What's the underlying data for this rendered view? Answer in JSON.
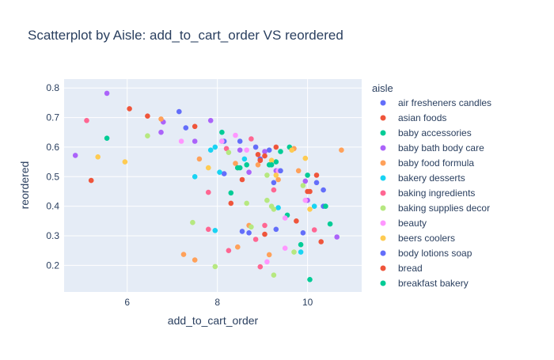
{
  "chart_data": {
    "type": "scatter",
    "title": "Scatterplot by Aisle: add_to_cart_order VS reordered",
    "xlabel": "add_to_cart_order",
    "ylabel": "reordered",
    "xlim": [
      4.6,
      11.2
    ],
    "ylim": [
      0.11,
      0.83
    ],
    "x_ticks": [
      6,
      8,
      10
    ],
    "y_ticks": [
      0.2,
      0.3,
      0.4,
      0.5,
      0.6,
      0.7,
      0.8
    ],
    "grid": true,
    "legend_title": "aisle",
    "legend_position": "right",
    "series": [
      {
        "name": "air fresheners candles",
        "color": "#636efa",
        "points": [
          [
            7.15,
            0.72
          ],
          [
            7.3,
            0.665
          ],
          [
            8.15,
            0.62
          ],
          [
            8.95,
            0.56
          ],
          [
            9.15,
            0.59
          ],
          [
            10.35,
            0.455
          ],
          [
            10.2,
            0.48
          ],
          [
            8.7,
            0.31
          ],
          [
            9.9,
            0.31
          ],
          [
            8.15,
            0.51
          ],
          [
            10.35,
            0.4
          ]
        ]
      },
      {
        "name": "asian foods",
        "color": "#ef553b",
        "points": [
          [
            6.05,
            0.73
          ],
          [
            6.45,
            0.705
          ],
          [
            5.2,
            0.487
          ],
          [
            7.5,
            0.67
          ],
          [
            8.3,
            0.41
          ],
          [
            8.9,
            0.575
          ],
          [
            9.3,
            0.6
          ],
          [
            10.2,
            0.505
          ],
          [
            10.0,
            0.45
          ],
          [
            9.75,
            0.35
          ],
          [
            9.05,
            0.305
          ],
          [
            10.3,
            0.28
          ],
          [
            8.95,
            0.555
          ],
          [
            8.55,
            0.49
          ]
        ]
      },
      {
        "name": "baby accessories",
        "color": "#00cc96",
        "points": [
          [
            5.55,
            0.63
          ],
          [
            8.1,
            0.65
          ],
          [
            8.3,
            0.445
          ],
          [
            8.5,
            0.53
          ],
          [
            9.15,
            0.54
          ],
          [
            9.6,
            0.6
          ],
          [
            9.85,
            0.27
          ],
          [
            10.05,
            0.152
          ],
          [
            10.5,
            0.34
          ],
          [
            9.3,
            0.55
          ],
          [
            9.55,
            0.37
          ],
          [
            9.4,
            0.585
          ]
        ]
      },
      {
        "name": "baby bath body care",
        "color": "#ab63fa",
        "points": [
          [
            4.85,
            0.572
          ],
          [
            5.55,
            0.782
          ],
          [
            7.5,
            0.62
          ],
          [
            6.75,
            0.65
          ],
          [
            6.8,
            0.685
          ],
          [
            7.85,
            0.69
          ],
          [
            8.5,
            0.59
          ],
          [
            8.7,
            0.515
          ],
          [
            9.05,
            0.585
          ],
          [
            9.3,
            0.52
          ],
          [
            10.0,
            0.42
          ],
          [
            10.65,
            0.296
          ],
          [
            9.95,
            0.485
          ]
        ]
      },
      {
        "name": "baby food formula",
        "color": "#ffa15a",
        "points": [
          [
            6.75,
            0.695
          ],
          [
            7.6,
            0.56
          ],
          [
            7.25,
            0.237
          ],
          [
            7.5,
            0.218
          ],
          [
            8.4,
            0.545
          ],
          [
            8.45,
            0.53
          ],
          [
            8.7,
            0.335
          ],
          [
            8.9,
            0.54
          ],
          [
            9.35,
            0.49
          ],
          [
            9.7,
            0.595
          ],
          [
            9.8,
            0.52
          ],
          [
            10.75,
            0.59
          ],
          [
            8.45,
            0.262
          ],
          [
            9.15,
            0.236
          ]
        ]
      },
      {
        "name": "bakery desserts",
        "color": "#19d3f3",
        "points": [
          [
            7.5,
            0.5
          ],
          [
            7.85,
            0.59
          ],
          [
            7.95,
            0.6
          ],
          [
            8.05,
            0.515
          ],
          [
            8.6,
            0.56
          ],
          [
            9.35,
            0.395
          ],
          [
            10.15,
            0.4
          ],
          [
            9.85,
            0.245
          ],
          [
            8.1,
            0.62
          ],
          [
            7.95,
            0.318
          ]
        ]
      },
      {
        "name": "baking ingredients",
        "color": "#ff6692",
        "points": [
          [
            5.1,
            0.69
          ],
          [
            7.8,
            0.447
          ],
          [
            7.8,
            0.322
          ],
          [
            8.2,
            0.595
          ],
          [
            8.75,
            0.628
          ],
          [
            8.85,
            0.6
          ],
          [
            9.05,
            0.335
          ],
          [
            8.95,
            0.195
          ],
          [
            9.25,
            0.455
          ],
          [
            8.85,
            0.288
          ],
          [
            10.15,
            0.32
          ],
          [
            8.25,
            0.25
          ]
        ]
      },
      {
        "name": "baking supplies decor",
        "color": "#b6e880",
        "points": [
          [
            6.45,
            0.638
          ],
          [
            7.45,
            0.345
          ],
          [
            7.95,
            0.196
          ],
          [
            8.25,
            0.582
          ],
          [
            8.65,
            0.41
          ],
          [
            8.75,
            0.33
          ],
          [
            9.1,
            0.42
          ],
          [
            9.25,
            0.39
          ],
          [
            9.25,
            0.167
          ],
          [
            9.7,
            0.245
          ],
          [
            9.9,
            0.47
          ],
          [
            9.2,
            0.4
          ],
          [
            9.1,
            0.505
          ]
        ]
      },
      {
        "name": "beauty",
        "color": "#ff97ff",
        "points": [
          [
            7.2,
            0.62
          ],
          [
            8.1,
            0.62
          ],
          [
            8.4,
            0.64
          ],
          [
            8.65,
            0.59
          ],
          [
            9.1,
            0.212
          ],
          [
            9.35,
            0.52
          ],
          [
            9.5,
            0.36
          ],
          [
            9.95,
            0.42
          ],
          [
            9.5,
            0.258
          ]
        ]
      },
      {
        "name": "beers coolers",
        "color": "#fecb52",
        "points": [
          [
            5.35,
            0.567
          ],
          [
            5.95,
            0.55
          ],
          [
            7.8,
            0.53
          ],
          [
            9.2,
            0.555
          ],
          [
            9.65,
            0.59
          ],
          [
            9.95,
            0.562
          ],
          [
            10.05,
            0.39
          ],
          [
            9.3,
            0.505
          ]
        ]
      },
      {
        "name": "body lotions soap",
        "color": "#636efa",
        "points": [
          [
            8.5,
            0.62
          ],
          [
            8.85,
            0.6
          ],
          [
            9.25,
            0.48
          ],
          [
            9.3,
            0.322
          ],
          [
            9.4,
            0.52
          ],
          [
            8.55,
            0.315
          ]
        ]
      },
      {
        "name": "bread",
        "color": "#ef553b",
        "points": [
          [
            8.95,
            0.555
          ],
          [
            9.05,
            0.57
          ],
          [
            10.05,
            0.45
          ]
        ]
      },
      {
        "name": "breakfast bakery",
        "color": "#00cc96",
        "points": [
          [
            8.45,
            0.53
          ],
          [
            8.65,
            0.54
          ],
          [
            9.2,
            0.54
          ],
          [
            10.0,
            0.505
          ],
          [
            10.4,
            0.4
          ]
        ]
      }
    ]
  }
}
